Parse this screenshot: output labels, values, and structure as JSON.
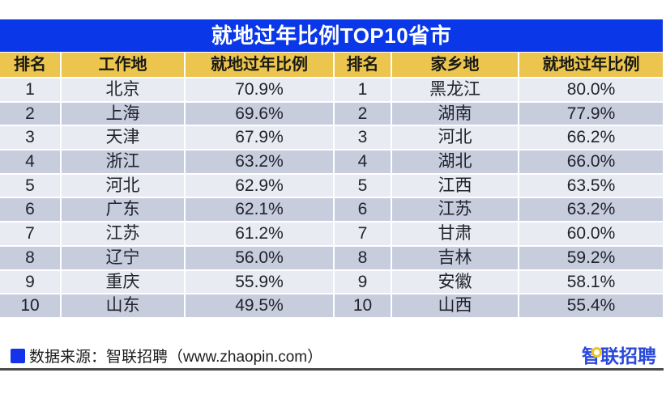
{
  "title": "就地过年比例TOP10省市",
  "chart_data": [
    {
      "type": "table",
      "title": "就地过年比例TOP10省市",
      "columns": [
        "排名",
        "工作地",
        "就地过年比例"
      ],
      "rows": [
        [
          "1",
          "北京",
          "70.9%"
        ],
        [
          "2",
          "上海",
          "69.6%"
        ],
        [
          "3",
          "天津",
          "67.9%"
        ],
        [
          "4",
          "浙江",
          "63.2%"
        ],
        [
          "5",
          "河北",
          "62.9%"
        ],
        [
          "6",
          "广东",
          "62.1%"
        ],
        [
          "7",
          "江苏",
          "61.2%"
        ],
        [
          "8",
          "辽宁",
          "56.0%"
        ],
        [
          "9",
          "重庆",
          "55.9%"
        ],
        [
          "10",
          "山东",
          "49.5%"
        ]
      ]
    },
    {
      "type": "table",
      "title": "就地过年比例TOP10省市",
      "columns": [
        "排名",
        "家乡地",
        "就地过年比例"
      ],
      "rows": [
        [
          "1",
          "黑龙江",
          "80.0%"
        ],
        [
          "2",
          "湖南",
          "77.9%"
        ],
        [
          "3",
          "河北",
          "66.2%"
        ],
        [
          "4",
          "湖北",
          "66.0%"
        ],
        [
          "5",
          "江西",
          "63.5%"
        ],
        [
          "6",
          "江苏",
          "63.2%"
        ],
        [
          "7",
          "甘肃",
          "60.0%"
        ],
        [
          "8",
          "吉林",
          "59.2%"
        ],
        [
          "9",
          "安徽",
          "58.1%"
        ],
        [
          "10",
          "山西",
          "55.4%"
        ]
      ]
    }
  ],
  "footer": {
    "source_text": "数据来源：智联招聘（www.zhaopin.com）",
    "logo_text": "智联招聘"
  },
  "colors": {
    "title_bar_blue": "#0a37e8",
    "header_gold": "#ecc54f",
    "row_light": "#e9ebf3",
    "row_dark": "#c8cdde",
    "source_square_blue": "#1532eb",
    "logo_blue": "#2b49da",
    "logo_yellow": "#f2c51b"
  }
}
